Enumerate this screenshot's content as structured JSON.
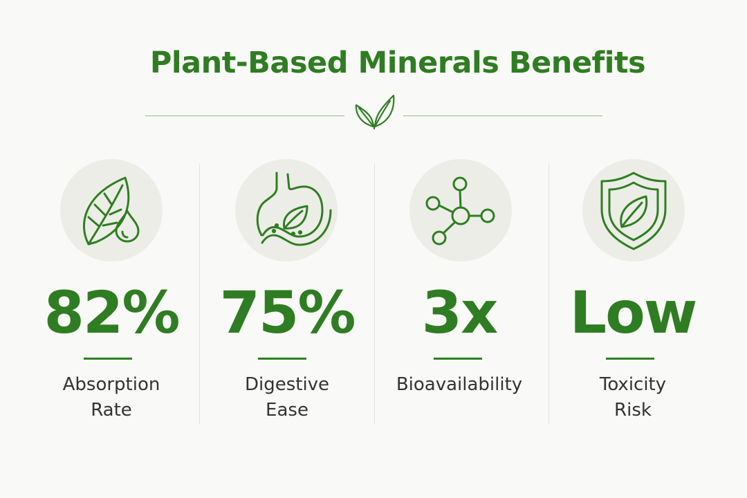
{
  "title": "Plant-Based Minerals Benefits",
  "colors": {
    "brand_green": "#2f7d22",
    "icon_circle_bg": "#ecede6",
    "page_bg": "#f9f9f7",
    "label_text": "#333333"
  },
  "divider": {
    "icon": "sprout-icon"
  },
  "stats": [
    {
      "value": "82%",
      "label_line1": "Absorption",
      "label_line2": "Rate",
      "icon": "leaf-droplet-icon"
    },
    {
      "value": "75%",
      "label_line1": "Digestive",
      "label_line2": "Ease",
      "icon": "stomach-leaf-icon"
    },
    {
      "value": "3x",
      "label_line1": "Bioavailability",
      "label_line2": "",
      "icon": "molecule-icon"
    },
    {
      "value": "Low",
      "label_line1": "Toxicity",
      "label_line2": "Risk",
      "icon": "shield-leaf-icon"
    }
  ]
}
